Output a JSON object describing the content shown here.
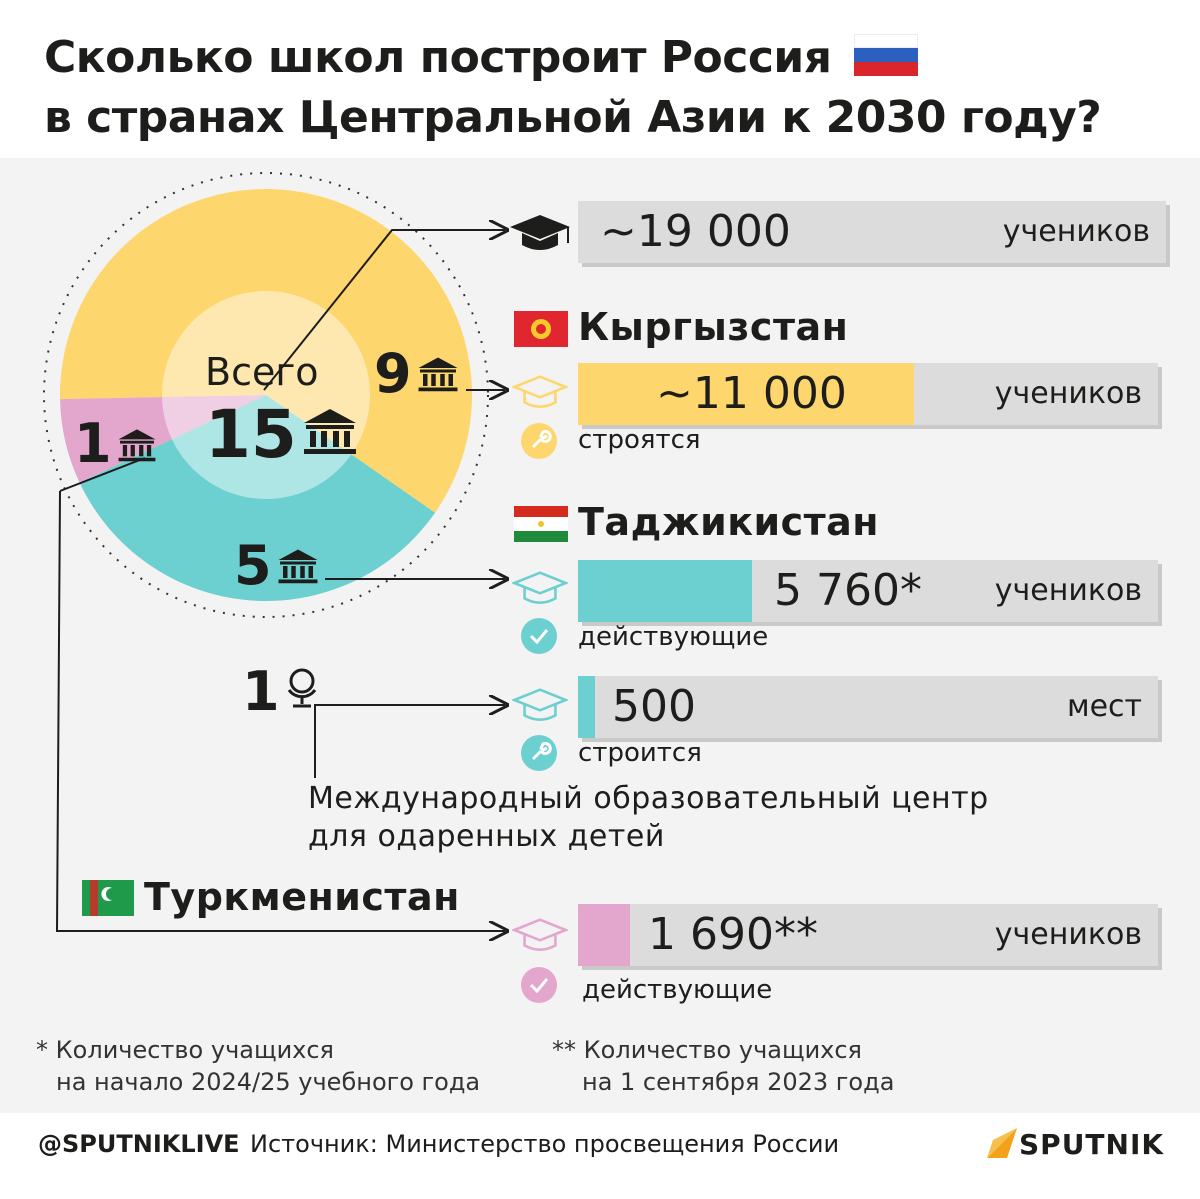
{
  "title_line1": "Сколько школ построит Россия",
  "title_line2": "в странах Центральной Азии к 2030 году?",
  "center": {
    "label": "Всего",
    "total": "15"
  },
  "chart_data": {
    "type": "pie",
    "categories": [
      "Кыргызстан",
      "Таджикистан",
      "Туркменистан"
    ],
    "values": [
      9,
      5,
      1
    ],
    "total": 15,
    "colors": [
      "#fdd66e",
      "#6ccfd0",
      "#e3a6cd"
    ],
    "labels": [
      "9",
      "5",
      "1"
    ],
    "extra_label": "1"
  },
  "total_bar": {
    "value": "~19 000",
    "unit": "учеников"
  },
  "kg": {
    "name": "Кыргызстан",
    "value": "~11 000",
    "unit": "учеников",
    "status": "строятся",
    "fill": 0.58
  },
  "tj": {
    "name": "Таджикистан",
    "value": "5 760*",
    "unit": "учеников",
    "status": "действующие",
    "fill": 0.3
  },
  "center_bar": {
    "value": "500",
    "unit": "мест",
    "status": "строится",
    "fill": 0.03
  },
  "center_desc_1": "Международный образовательный центр",
  "center_desc_2": "для одаренных детей",
  "tm": {
    "name": "Туркменистан",
    "value": "1 690**",
    "unit": "учеников",
    "status": "действующие",
    "fill": 0.09
  },
  "note1_line1": "* Количество учащихся",
  "note1_line2": "на начало 2024/25 учебного года",
  "note2_line1": "** Количество учащихся",
  "note2_line2": "на 1 сентября 2023 года",
  "footer_handle": "@SPUTNIKLIVE",
  "footer_source": "Источник: Министерство просвещения России",
  "logo": "SPUTNIK",
  "colors": {
    "yellow": "#fdd66e",
    "teal": "#6ccfd0",
    "pink": "#e3a6cd",
    "grey_bar": "#dcdcdc",
    "orange": "#f4a11b"
  }
}
